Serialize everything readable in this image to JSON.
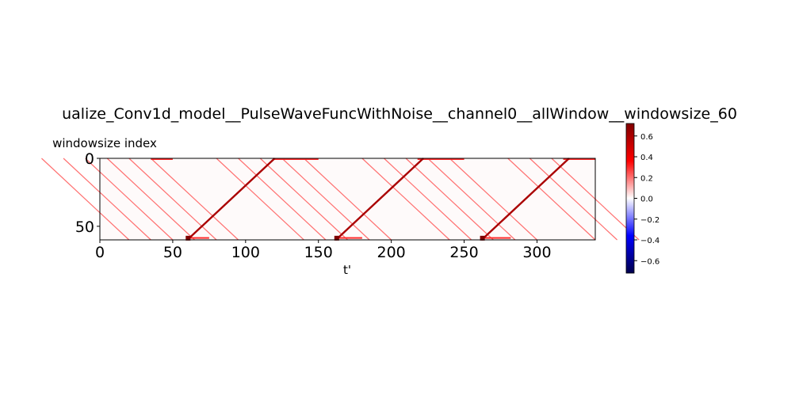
{
  "chart_data": {
    "type": "heatmap",
    "title": "ualize_Conv1d_model__PulseWaveFuncWithNoise__channel0__allWindow__windowsize_60",
    "xlabel": "t'",
    "ylabel": "windowsize index",
    "x_range": [
      0,
      340
    ],
    "y_range": [
      0,
      60
    ],
    "x_ticks": [
      "0",
      "50",
      "100",
      "150",
      "200",
      "250",
      "300"
    ],
    "x_tick_values": [
      0,
      50,
      100,
      150,
      200,
      250,
      300
    ],
    "y_ticks": [
      "0",
      "50"
    ],
    "y_tick_values": [
      0,
      50
    ],
    "colormap": "seismic",
    "colorbar": {
      "range": [
        -0.72,
        0.72
      ],
      "ticks": [
        "0.6",
        "0.4",
        "0.2",
        "0.0",
        "−0.2",
        "−0.4",
        "−0.6"
      ],
      "tick_values": [
        0.6,
        0.4,
        0.2,
        0.0,
        -0.2,
        -0.4,
        -0.6
      ]
    },
    "features": {
      "strong_diagonals_start_t": [
        60,
        162,
        262
      ],
      "strong_diagonal_value": 0.6,
      "weak_diagonals_start_t": [
        -40,
        -25,
        -10,
        5,
        20,
        35,
        80,
        95,
        110,
        125,
        140,
        180,
        195,
        210,
        225,
        240,
        280,
        295,
        310
      ],
      "weak_diagonal_value": 0.2,
      "top_row_bands": [
        [
          35,
          50
        ],
        [
          120,
          150
        ],
        [
          218,
          250
        ],
        [
          318,
          340
        ]
      ],
      "bottom_row_bands": [
        [
          60,
          75
        ],
        [
          162,
          180
        ],
        [
          262,
          282
        ]
      ],
      "band_value": 0.3,
      "background_value": 0.02
    }
  }
}
